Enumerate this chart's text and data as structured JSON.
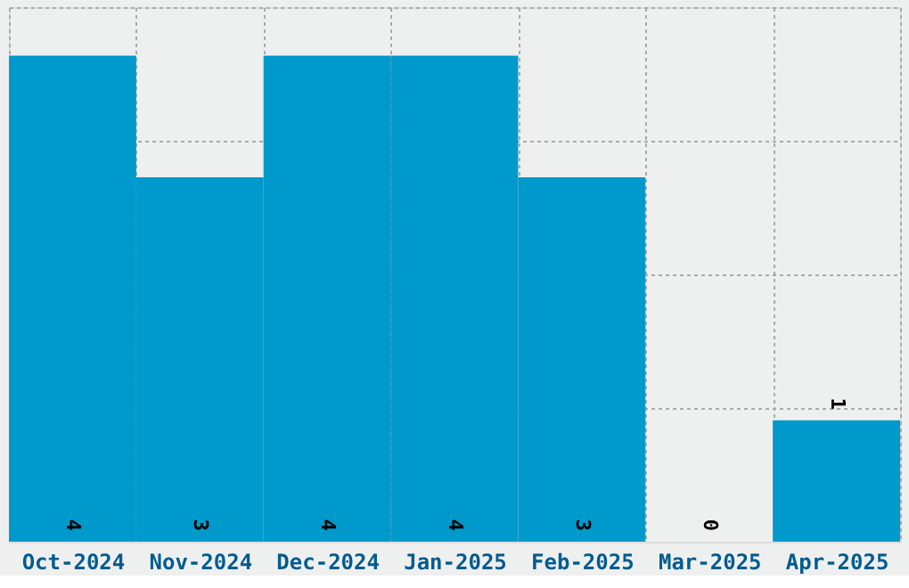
{
  "chart_data": {
    "type": "bar",
    "categories": [
      "Oct-2024",
      "Nov-2024",
      "Dec-2024",
      "Jan-2025",
      "Feb-2025",
      "Mar-2025",
      "Apr-2025"
    ],
    "values": [
      4,
      3,
      4,
      4,
      3,
      0,
      1
    ],
    "color": "#0099cc",
    "ylim": [
      0,
      4.4
    ],
    "yticks": [
      {
        "value": 1.1,
        "label": null
      },
      {
        "value": 2.2,
        "label": null
      },
      {
        "value": 3.3,
        "label": null
      },
      {
        "value": 4.4,
        "label": null
      }
    ],
    "tick_labels": "x",
    "grid": true,
    "data_labels": true
  }
}
